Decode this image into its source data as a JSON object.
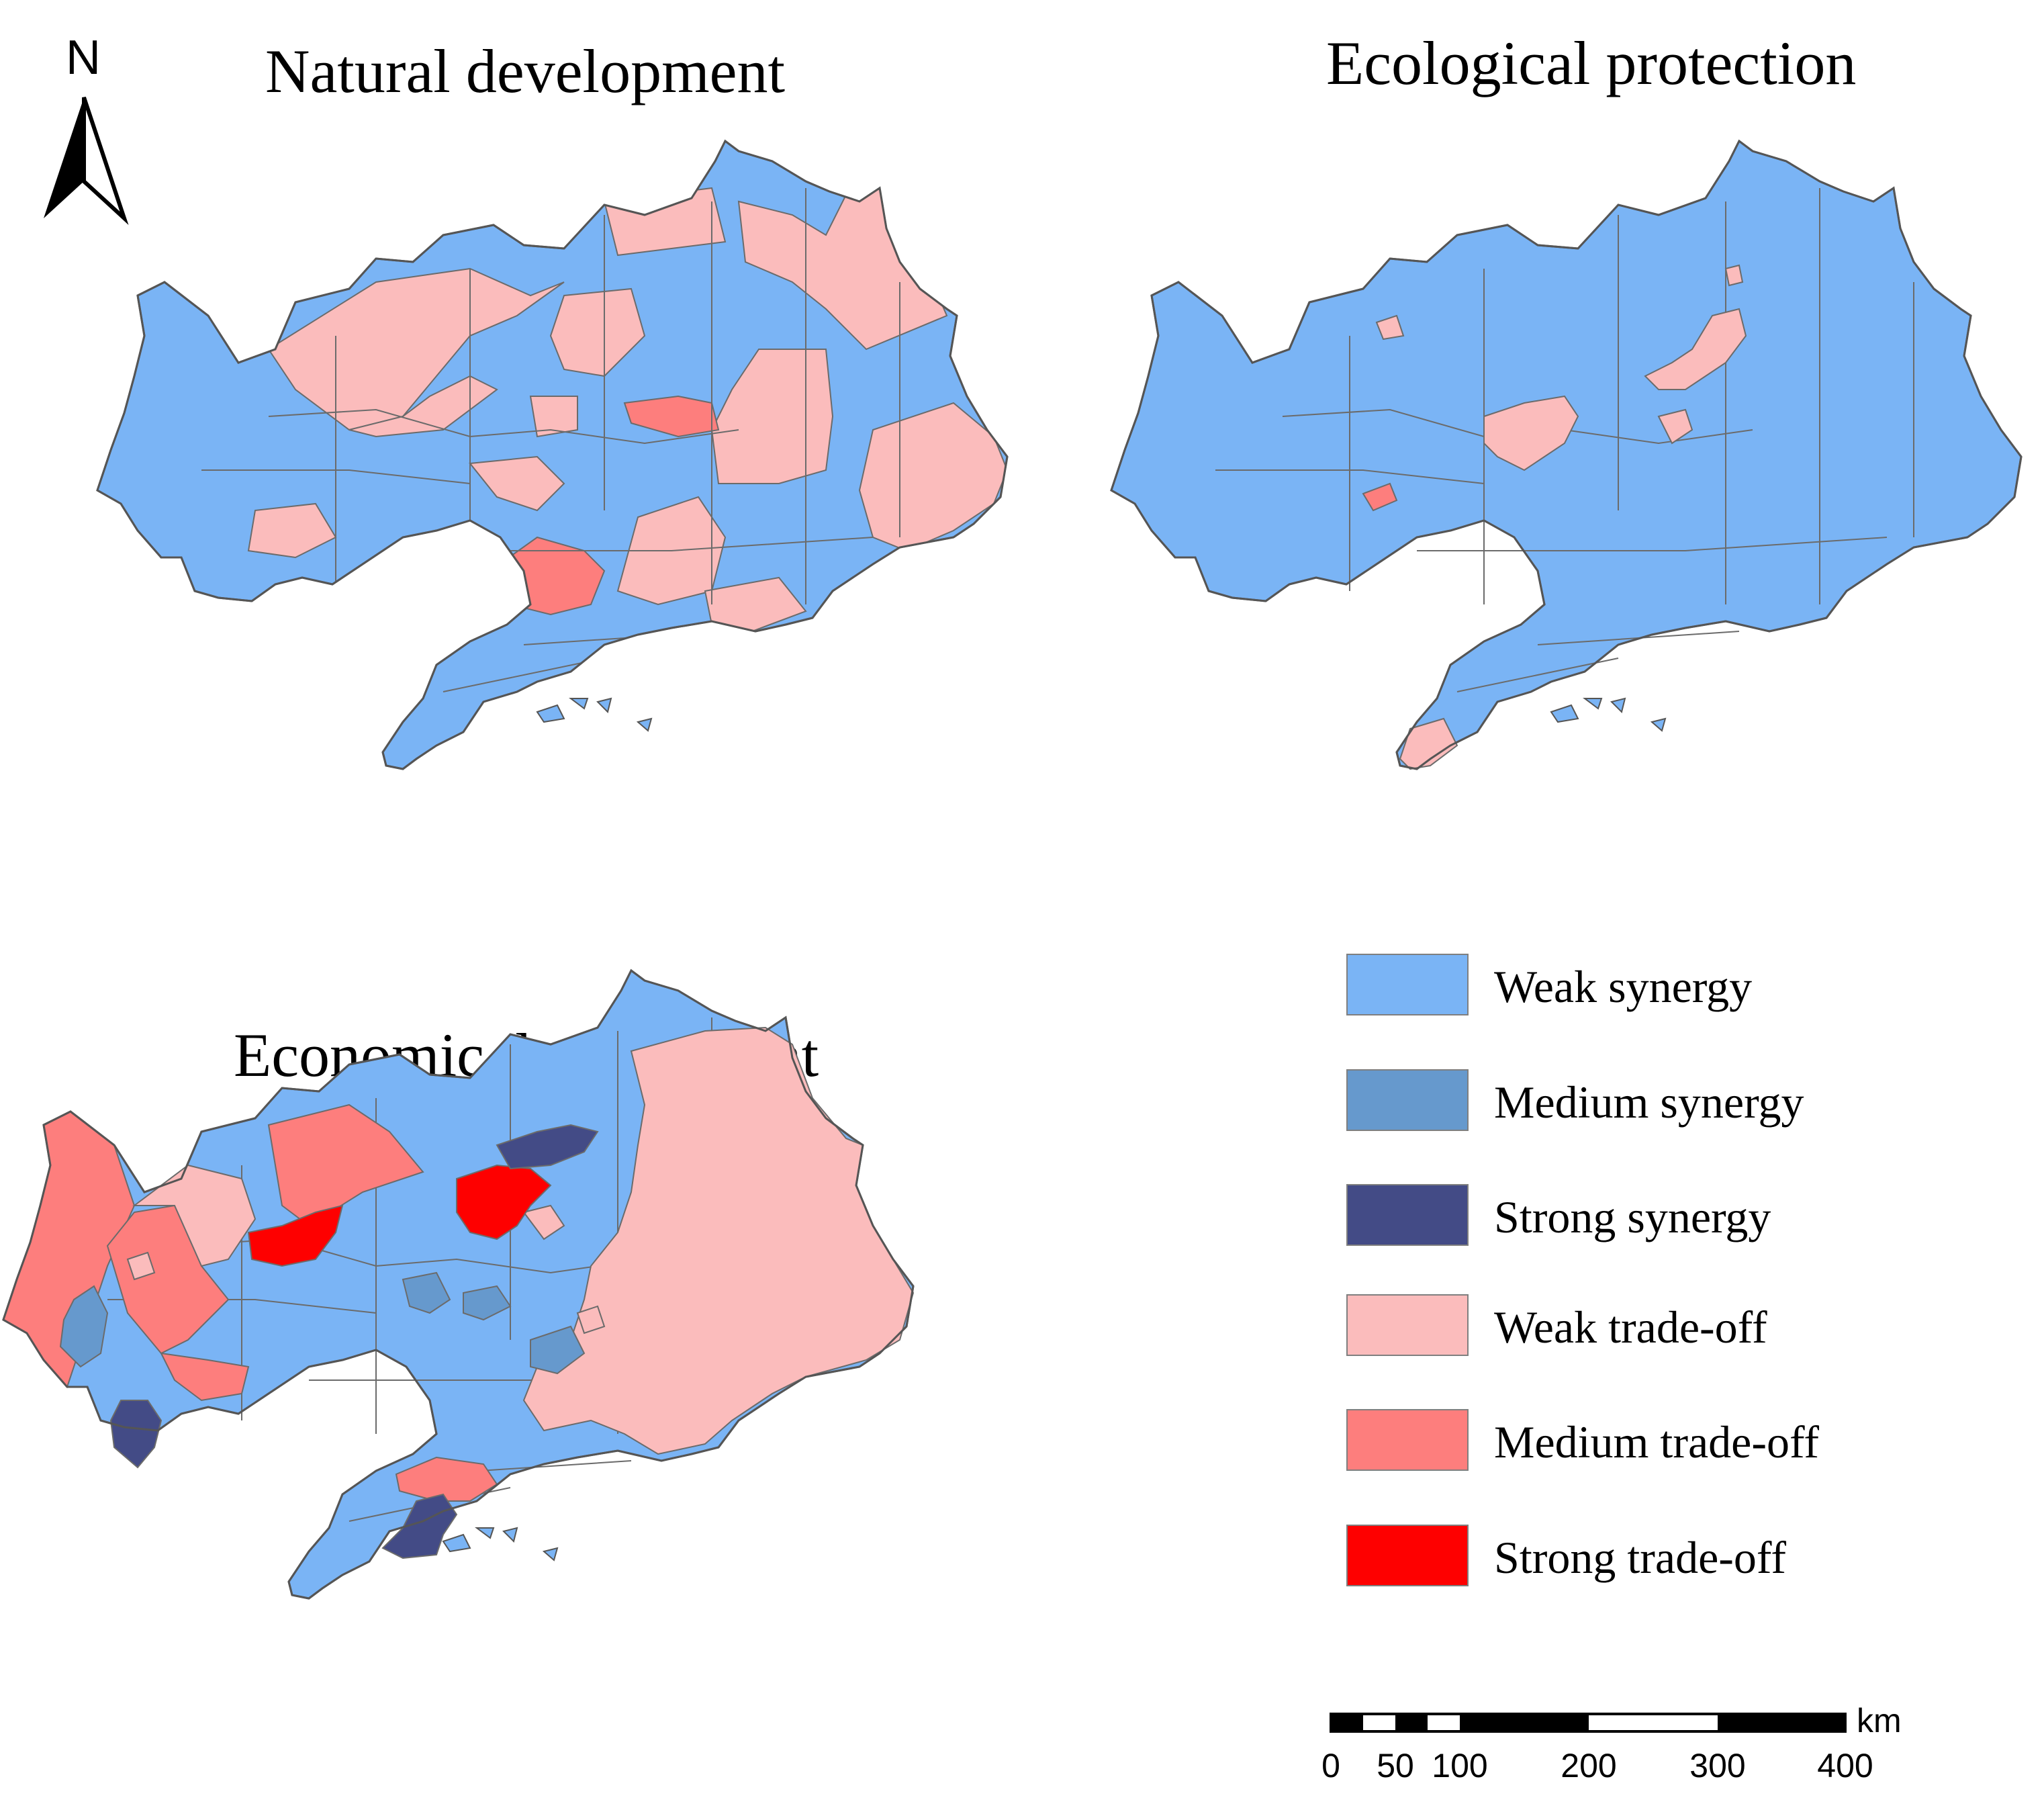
{
  "maps": {
    "natural": {
      "title": "Natural development"
    },
    "ecological": {
      "title": "Ecological protection"
    },
    "economic": {
      "title": "Economic development"
    }
  },
  "north_arrow": {
    "label": "N",
    "icon": "north-arrow-icon"
  },
  "legend": {
    "items": [
      {
        "label": "Weak synergy",
        "color": "#7ab4f5"
      },
      {
        "label": "Medium synergy",
        "color": "#6699cd"
      },
      {
        "label": "Strong synergy",
        "color": "#434b86"
      },
      {
        "label": "Weak trade-off",
        "color": "#fbbcbc"
      },
      {
        "label": "Medium trade-off",
        "color": "#fd7e7d"
      },
      {
        "label": "Strong trade-off",
        "color": "#fe0000"
      }
    ]
  },
  "scale_bar": {
    "unit": "km",
    "ticks": [
      "0",
      "50",
      "100",
      "200",
      "300",
      "400"
    ]
  }
}
